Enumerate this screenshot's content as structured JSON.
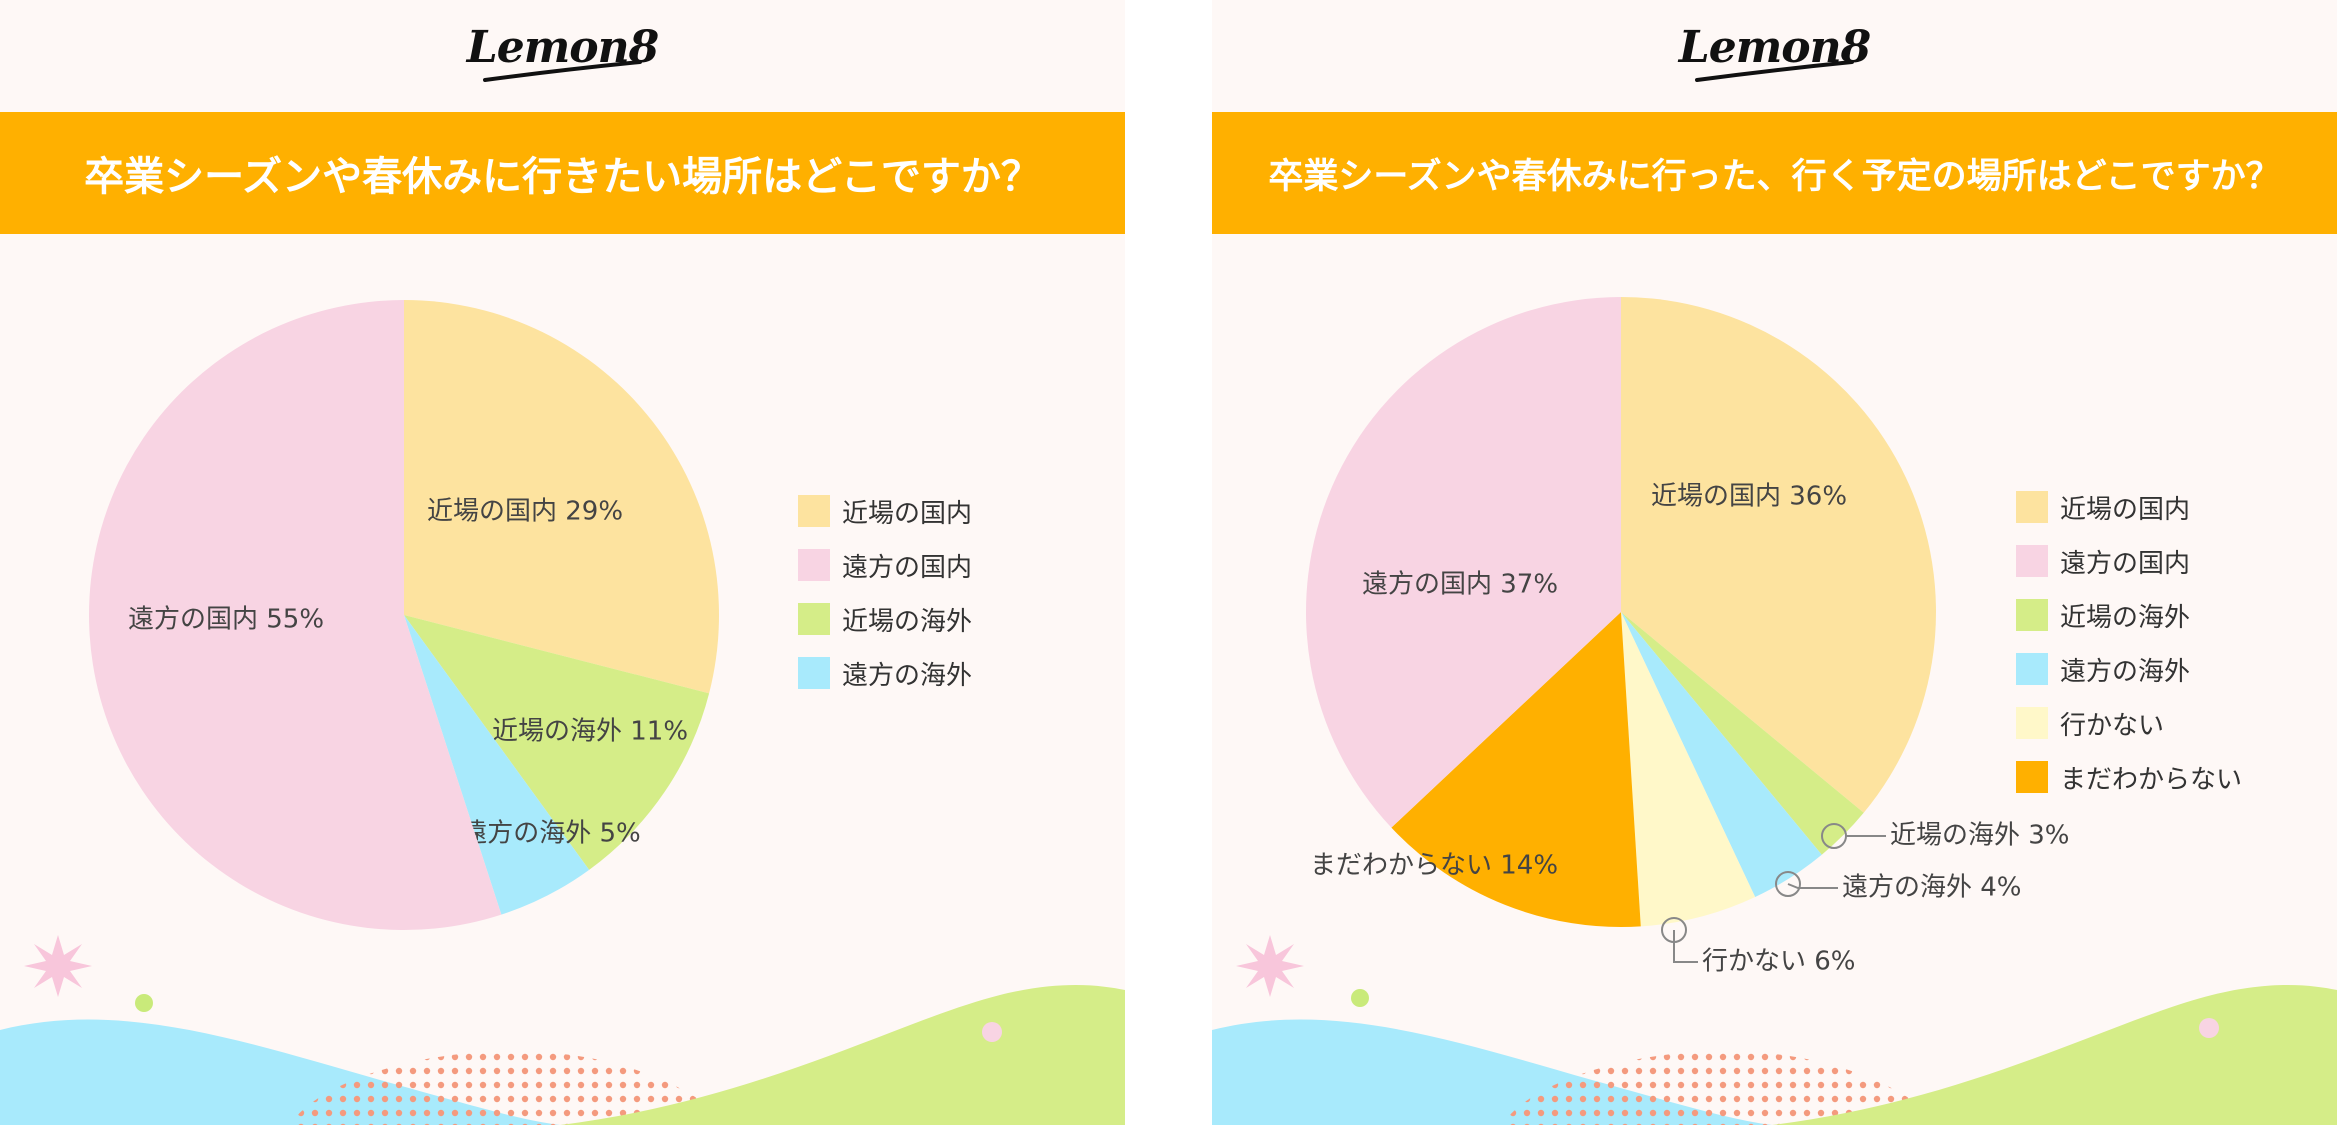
{
  "logo_text": "Lemon8",
  "colors": {
    "title_bar": "#ffb000",
    "background": "#fef8f6",
    "near_domestic": "#fde39f",
    "far_domestic": "#f8d4e3",
    "near_overseas": "#d5ed88",
    "far_overseas": "#a8eafc",
    "not_going": "#fff8c9",
    "undecided": "#ffb000"
  },
  "chart_data": [
    {
      "type": "pie",
      "title": "卒業シーズンや春休みに行きたい場所はどこですか？",
      "legend": [
        "近場の国内",
        "遠方の国内",
        "近場の海外",
        "遠方の海外"
      ],
      "slices": [
        {
          "label": "近場の国内",
          "value": 29,
          "display": "近場の国内 29%",
          "color": "#fde39f"
        },
        {
          "label": "近場の海外",
          "value": 11,
          "display": "近場の海外 11%",
          "color": "#d5ed88"
        },
        {
          "label": "遠方の海外",
          "value": 5,
          "display": "遠方の海外 5%",
          "color": "#a8eafc"
        },
        {
          "label": "遠方の国内",
          "value": 55,
          "display": "遠方の国内 55%",
          "color": "#f8d4e3"
        }
      ]
    },
    {
      "type": "pie",
      "title": "卒業シーズンや春休みに行った、行く予定の場所はどこですか？",
      "legend": [
        "近場の国内",
        "遠方の国内",
        "近場の海外",
        "遠方の海外",
        "行かない",
        "まだわからない"
      ],
      "slices": [
        {
          "label": "近場の国内",
          "value": 36,
          "display": "近場の国内 36%",
          "color": "#fde39f"
        },
        {
          "label": "近場の海外",
          "value": 3,
          "display": "近場の海外 3%",
          "color": "#d5ed88"
        },
        {
          "label": "遠方の海外",
          "value": 4,
          "display": "遠方の海外 4%",
          "color": "#a8eafc"
        },
        {
          "label": "行かない",
          "value": 6,
          "display": "行かない 6%",
          "color": "#fff8c9"
        },
        {
          "label": "まだわからない",
          "value": 14,
          "display": "まだわからない 14%",
          "color": "#ffb000"
        },
        {
          "label": "遠方の国内",
          "value": 37,
          "display": "遠方の国内 37%",
          "color": "#f8d4e3"
        }
      ]
    }
  ]
}
